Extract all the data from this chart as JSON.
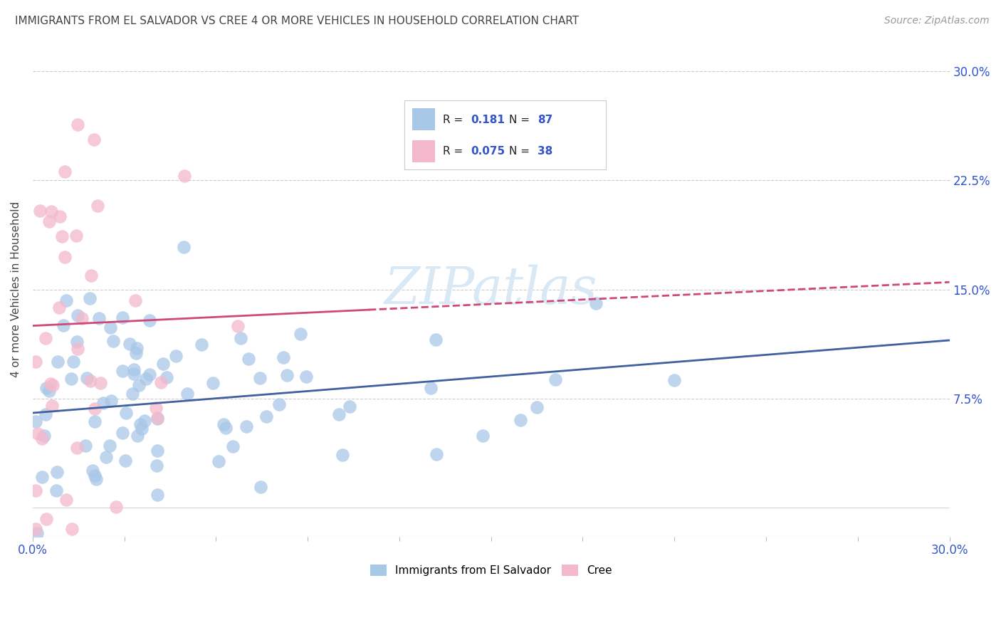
{
  "title": "IMMIGRANTS FROM EL SALVADOR VS CREE 4 OR MORE VEHICLES IN HOUSEHOLD CORRELATION CHART",
  "source": "Source: ZipAtlas.com",
  "ylabel": "4 or more Vehicles in Household",
  "legend_label1": "Immigrants from El Salvador",
  "legend_label2": "Cree",
  "R1": "0.181",
  "N1": "87",
  "R2": "0.075",
  "N2": "38",
  "blue_scatter_color": "#a8c8e8",
  "pink_scatter_color": "#f4b8cc",
  "blue_line_color": "#4060a0",
  "pink_line_color": "#d04878",
  "title_color": "#444444",
  "value_color": "#3355cc",
  "source_color": "#999999",
  "background_color": "#ffffff",
  "grid_color": "#cccccc",
  "watermark_color": "#d8e8f4",
  "watermark": "ZIPatlas",
  "xlim": [
    0.0,
    0.3
  ],
  "ylim": [
    -0.02,
    0.32
  ],
  "ytick_vals": [
    0.075,
    0.15,
    0.225,
    0.3
  ],
  "ytick_labels": [
    "7.5%",
    "15.0%",
    "22.5%",
    "30.0%"
  ],
  "blue_trend_x": [
    0.0,
    0.3
  ],
  "blue_trend_y": [
    0.065,
    0.115
  ],
  "pink_trend_x": [
    0.0,
    0.3
  ],
  "pink_trend_y": [
    0.125,
    0.155
  ],
  "pink_trend_dash_start": 0.11,
  "blue_seed": 7,
  "pink_seed": 3,
  "n_blue": 87,
  "n_pink": 38
}
